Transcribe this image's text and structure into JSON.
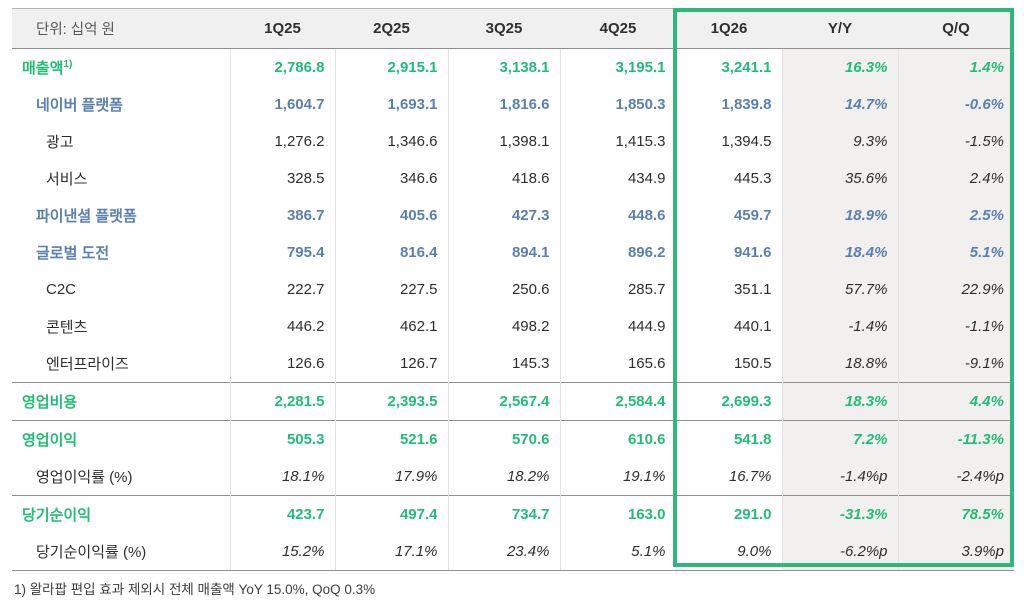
{
  "unit_label": "단위: 십억 원",
  "columns": [
    "1Q25",
    "2Q25",
    "3Q25",
    "4Q25",
    "1Q26",
    "Y/Y",
    "Q/Q"
  ],
  "highlighted_columns": [
    "1Q26",
    "Y/Y",
    "Q/Q"
  ],
  "colors": {
    "green": "#23bc77",
    "blue": "#5b80ad",
    "highlight_border": "#2eb67d",
    "shaded_column_bg": "#f1f0ee",
    "header_bg": "#f0f0f0"
  },
  "rows": [
    {
      "label": "매출액",
      "superscript": "1)",
      "style": "total-green",
      "indent": 0,
      "values": [
        "2,786.8",
        "2,915.1",
        "3,138.1",
        "3,195.1",
        "3,241.1",
        "16.3%",
        "1.4%"
      ]
    },
    {
      "label": "네이버 플랫폼",
      "style": "sub-blue",
      "indent": 1,
      "values": [
        "1,604.7",
        "1,693.1",
        "1,816.6",
        "1,850.3",
        "1,839.8",
        "14.7%",
        "-0.6%"
      ]
    },
    {
      "label": "광고",
      "style": "detail",
      "indent": 2,
      "values": [
        "1,276.2",
        "1,346.6",
        "1,398.1",
        "1,415.3",
        "1,394.5",
        "9.3%",
        "-1.5%"
      ]
    },
    {
      "label": "서비스",
      "style": "detail",
      "indent": 2,
      "values": [
        "328.5",
        "346.6",
        "418.6",
        "434.9",
        "445.3",
        "35.6%",
        "2.4%"
      ]
    },
    {
      "label": "파이낸셜 플랫폼",
      "style": "sub-blue",
      "indent": 1,
      "values": [
        "386.7",
        "405.6",
        "427.3",
        "448.6",
        "459.7",
        "18.9%",
        "2.5%"
      ]
    },
    {
      "label": "글로벌 도전",
      "style": "sub-blue",
      "indent": 1,
      "values": [
        "795.4",
        "816.4",
        "894.1",
        "896.2",
        "941.6",
        "18.4%",
        "5.1%"
      ]
    },
    {
      "label": "C2C",
      "style": "detail",
      "indent": 2,
      "values": [
        "222.7",
        "227.5",
        "250.6",
        "285.7",
        "351.1",
        "57.7%",
        "22.9%"
      ]
    },
    {
      "label": "콘텐츠",
      "style": "detail",
      "indent": 2,
      "values": [
        "446.2",
        "462.1",
        "498.2",
        "444.9",
        "440.1",
        "-1.4%",
        "-1.1%"
      ]
    },
    {
      "label": "엔터프라이즈",
      "style": "detail",
      "indent": 2,
      "values": [
        "126.6",
        "126.7",
        "145.3",
        "165.6",
        "150.5",
        "18.8%",
        "-9.1%"
      ]
    },
    {
      "label": "영업비용",
      "style": "total-green",
      "indent": 0,
      "divider_above": true,
      "values": [
        "2,281.5",
        "2,393.5",
        "2,567.4",
        "2,584.4",
        "2,699.3",
        "18.3%",
        "4.4%"
      ]
    },
    {
      "label": "영업이익",
      "style": "total-green",
      "indent": 0,
      "divider_above": true,
      "values": [
        "505.3",
        "521.6",
        "570.6",
        "610.6",
        "541.8",
        "7.2%",
        "-11.3%"
      ]
    },
    {
      "label": "영업이익률 (%)",
      "style": "rate",
      "indent": 1,
      "values": [
        "18.1%",
        "17.9%",
        "18.2%",
        "19.1%",
        "16.7%",
        "-1.4%p",
        "-2.4%p"
      ]
    },
    {
      "label": "당기순이익",
      "style": "total-green",
      "indent": 0,
      "divider_above": true,
      "values": [
        "423.7",
        "497.4",
        "734.7",
        "163.0",
        "291.0",
        "-31.3%",
        "78.5%"
      ]
    },
    {
      "label": "당기순이익률 (%)",
      "style": "rate",
      "indent": 1,
      "spell_mark_col": 6,
      "values": [
        "15.2%",
        "17.1%",
        "23.4%",
        "5.1%",
        "9.0%",
        "-6.2%p",
        "3.9%p"
      ]
    }
  ],
  "footnote": "1) 왈라팝 편입 효과 제외시 전체 매출액 YoY 15.0%, QoQ 0.3%"
}
